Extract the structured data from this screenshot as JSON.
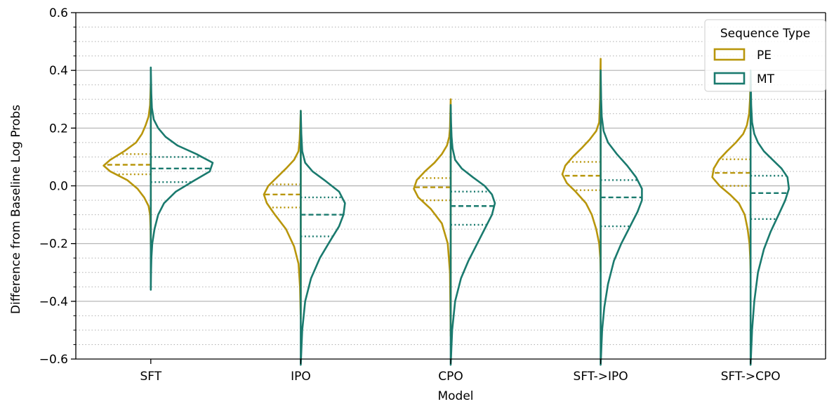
{
  "chart_data": {
    "type": "violin",
    "title": "",
    "xlabel": "Model",
    "ylabel": "Difference from Baseline Log Probs",
    "ylim": [
      -0.6,
      0.6
    ],
    "y_major_ticks": [
      -0.6,
      -0.4,
      -0.2,
      0.0,
      0.2,
      0.4,
      0.6
    ],
    "y_tick_labels": [
      "−0.6",
      "−0.4",
      "−0.2",
      "0.0",
      "0.2",
      "0.4",
      "0.6"
    ],
    "y_minor_step": 0.05,
    "grid": {
      "major": "solid",
      "minor": "dotted",
      "axis": "y"
    },
    "categories": [
      "SFT",
      "IPO",
      "CPO",
      "SFT->IPO",
      "SFT->CPO"
    ],
    "legend": {
      "title": "Sequence Type",
      "placement": "top-right",
      "entries": [
        {
          "label": "PE",
          "color": "#b8960c"
        },
        {
          "label": "MT",
          "color": "#1a7a6e"
        }
      ]
    },
    "series": [
      {
        "name": "PE",
        "side": "left",
        "color": "#b8960c",
        "violins": [
          {
            "range": [
              -0.22,
              0.36
            ],
            "q1": 0.04,
            "median": 0.073,
            "q3": 0.11,
            "profile": [
              [
                -0.22,
                0
              ],
              [
                -0.15,
                0.003
              ],
              [
                -0.1,
                0.01
              ],
              [
                -0.07,
                0.03
              ],
              [
                -0.04,
                0.09
              ],
              [
                -0.01,
                0.18
              ],
              [
                0.02,
                0.32
              ],
              [
                0.05,
                0.55
              ],
              [
                0.07,
                0.64
              ],
              [
                0.09,
                0.55
              ],
              [
                0.12,
                0.36
              ],
              [
                0.15,
                0.2
              ],
              [
                0.18,
                0.12
              ],
              [
                0.21,
                0.07
              ],
              [
                0.24,
                0.03
              ],
              [
                0.28,
                0.01
              ],
              [
                0.32,
                0.005
              ],
              [
                0.36,
                0
              ]
            ]
          },
          {
            "range": [
              -0.46,
              0.26
            ],
            "q1": -0.075,
            "median": -0.03,
            "q3": 0.005,
            "profile": [
              [
                -0.46,
                0
              ],
              [
                -0.35,
                0.01
              ],
              [
                -0.27,
                0.03
              ],
              [
                -0.21,
                0.09
              ],
              [
                -0.15,
                0.2
              ],
              [
                -0.1,
                0.35
              ],
              [
                -0.06,
                0.46
              ],
              [
                -0.03,
                0.5
              ],
              [
                0.0,
                0.44
              ],
              [
                0.03,
                0.32
              ],
              [
                0.06,
                0.2
              ],
              [
                0.09,
                0.09
              ],
              [
                0.12,
                0.03
              ],
              [
                0.16,
                0.015
              ],
              [
                0.2,
                0.008
              ],
              [
                0.26,
                0
              ]
            ]
          },
          {
            "range": [
              -0.52,
              0.3
            ],
            "q1": -0.05,
            "median": -0.005,
            "q3": 0.027,
            "profile": [
              [
                -0.52,
                0
              ],
              [
                -0.4,
                0.005
              ],
              [
                -0.3,
                0.01
              ],
              [
                -0.2,
                0.04
              ],
              [
                -0.13,
                0.12
              ],
              [
                -0.08,
                0.27
              ],
              [
                -0.04,
                0.44
              ],
              [
                -0.01,
                0.5
              ],
              [
                0.02,
                0.46
              ],
              [
                0.05,
                0.35
              ],
              [
                0.08,
                0.22
              ],
              [
                0.11,
                0.12
              ],
              [
                0.14,
                0.05
              ],
              [
                0.17,
                0.02
              ],
              [
                0.2,
                0.01
              ],
              [
                0.25,
                0.005
              ],
              [
                0.3,
                0
              ]
            ]
          },
          {
            "range": [
              -0.3,
              0.44
            ],
            "q1": -0.015,
            "median": 0.035,
            "q3": 0.083,
            "profile": [
              [
                -0.3,
                0
              ],
              [
                -0.25,
                0.005
              ],
              [
                -0.2,
                0.02
              ],
              [
                -0.15,
                0.06
              ],
              [
                -0.1,
                0.12
              ],
              [
                -0.06,
                0.2
              ],
              [
                -0.02,
                0.34
              ],
              [
                0.01,
                0.46
              ],
              [
                0.04,
                0.52
              ],
              [
                0.07,
                0.48
              ],
              [
                0.1,
                0.38
              ],
              [
                0.13,
                0.26
              ],
              [
                0.16,
                0.15
              ],
              [
                0.19,
                0.06
              ],
              [
                0.22,
                0.02
              ],
              [
                0.3,
                0.008
              ],
              [
                0.38,
                0.004
              ],
              [
                0.44,
                0
              ]
            ]
          },
          {
            "range": [
              -0.3,
              0.38
            ],
            "q1": 0.0,
            "median": 0.045,
            "q3": 0.092,
            "profile": [
              [
                -0.3,
                0
              ],
              [
                -0.25,
                0.005
              ],
              [
                -0.2,
                0.015
              ],
              [
                -0.15,
                0.04
              ],
              [
                -0.1,
                0.08
              ],
              [
                -0.06,
                0.16
              ],
              [
                -0.03,
                0.28
              ],
              [
                0.0,
                0.42
              ],
              [
                0.03,
                0.52
              ],
              [
                0.06,
                0.5
              ],
              [
                0.09,
                0.43
              ],
              [
                0.12,
                0.32
              ],
              [
                0.15,
                0.2
              ],
              [
                0.18,
                0.1
              ],
              [
                0.21,
                0.05
              ],
              [
                0.25,
                0.02
              ],
              [
                0.3,
                0.008
              ],
              [
                0.38,
                0
              ]
            ]
          }
        ]
      },
      {
        "name": "MT",
        "side": "right",
        "color": "#1a7a6e",
        "violins": [
          {
            "range": [
              -0.36,
              0.41
            ],
            "q1": 0.013,
            "median": 0.06,
            "q3": 0.1,
            "profile": [
              [
                -0.36,
                0
              ],
              [
                -0.3,
                0.003
              ],
              [
                -0.25,
                0.008
              ],
              [
                -0.2,
                0.02
              ],
              [
                -0.15,
                0.05
              ],
              [
                -0.1,
                0.1
              ],
              [
                -0.06,
                0.18
              ],
              [
                -0.02,
                0.34
              ],
              [
                0.02,
                0.6
              ],
              [
                0.05,
                0.8
              ],
              [
                0.08,
                0.84
              ],
              [
                0.11,
                0.62
              ],
              [
                0.14,
                0.36
              ],
              [
                0.17,
                0.2
              ],
              [
                0.2,
                0.1
              ],
              [
                0.23,
                0.04
              ],
              [
                0.27,
                0.015
              ],
              [
                0.32,
                0.007
              ],
              [
                0.41,
                0
              ]
            ]
          },
          {
            "range": [
              -0.62,
              0.26
            ],
            "q1": -0.175,
            "median": -0.1,
            "q3": -0.04,
            "profile": [
              [
                -0.62,
                0
              ],
              [
                -0.5,
                0.02
              ],
              [
                -0.4,
                0.06
              ],
              [
                -0.32,
                0.14
              ],
              [
                -0.25,
                0.26
              ],
              [
                -0.19,
                0.4
              ],
              [
                -0.14,
                0.52
              ],
              [
                -0.1,
                0.58
              ],
              [
                -0.06,
                0.6
              ],
              [
                -0.02,
                0.52
              ],
              [
                0.02,
                0.32
              ],
              [
                0.05,
                0.16
              ],
              [
                0.08,
                0.06
              ],
              [
                0.12,
                0.02
              ],
              [
                0.18,
                0.008
              ],
              [
                0.26,
                0
              ]
            ]
          },
          {
            "range": [
              -0.62,
              0.28
            ],
            "q1": -0.135,
            "median": -0.07,
            "q3": -0.02,
            "profile": [
              [
                -0.62,
                0
              ],
              [
                -0.5,
                0.02
              ],
              [
                -0.4,
                0.06
              ],
              [
                -0.32,
                0.14
              ],
              [
                -0.26,
                0.24
              ],
              [
                -0.2,
                0.36
              ],
              [
                -0.14,
                0.48
              ],
              [
                -0.1,
                0.56
              ],
              [
                -0.06,
                0.6
              ],
              [
                -0.03,
                0.56
              ],
              [
                0.0,
                0.46
              ],
              [
                0.03,
                0.3
              ],
              [
                0.06,
                0.15
              ],
              [
                0.09,
                0.06
              ],
              [
                0.13,
                0.025
              ],
              [
                0.17,
                0.012
              ],
              [
                0.22,
                0.005
              ],
              [
                0.28,
                0
              ]
            ]
          },
          {
            "range": [
              -0.62,
              0.4
            ],
            "q1": -0.14,
            "median": -0.04,
            "q3": 0.02,
            "profile": [
              [
                -0.62,
                0
              ],
              [
                -0.5,
                0.02
              ],
              [
                -0.42,
                0.05
              ],
              [
                -0.34,
                0.1
              ],
              [
                -0.26,
                0.18
              ],
              [
                -0.2,
                0.28
              ],
              [
                -0.14,
                0.4
              ],
              [
                -0.09,
                0.5
              ],
              [
                -0.05,
                0.56
              ],
              [
                -0.01,
                0.56
              ],
              [
                0.03,
                0.48
              ],
              [
                0.07,
                0.36
              ],
              [
                0.11,
                0.22
              ],
              [
                0.15,
                0.1
              ],
              [
                0.19,
                0.04
              ],
              [
                0.24,
                0.015
              ],
              [
                0.3,
                0.007
              ],
              [
                0.4,
                0
              ]
            ]
          },
          {
            "range": [
              -0.62,
              0.4
            ],
            "q1": -0.115,
            "median": -0.025,
            "q3": 0.035,
            "profile": [
              [
                -0.62,
                0
              ],
              [
                -0.5,
                0.02
              ],
              [
                -0.4,
                0.05
              ],
              [
                -0.3,
                0.1
              ],
              [
                -0.22,
                0.18
              ],
              [
                -0.16,
                0.27
              ],
              [
                -0.1,
                0.38
              ],
              [
                -0.05,
                0.47
              ],
              [
                -0.01,
                0.52
              ],
              [
                0.03,
                0.5
              ],
              [
                0.06,
                0.42
              ],
              [
                0.09,
                0.3
              ],
              [
                0.12,
                0.18
              ],
              [
                0.15,
                0.1
              ],
              [
                0.18,
                0.05
              ],
              [
                0.22,
                0.02
              ],
              [
                0.28,
                0.008
              ],
              [
                0.4,
                0
              ]
            ]
          }
        ]
      }
    ]
  }
}
